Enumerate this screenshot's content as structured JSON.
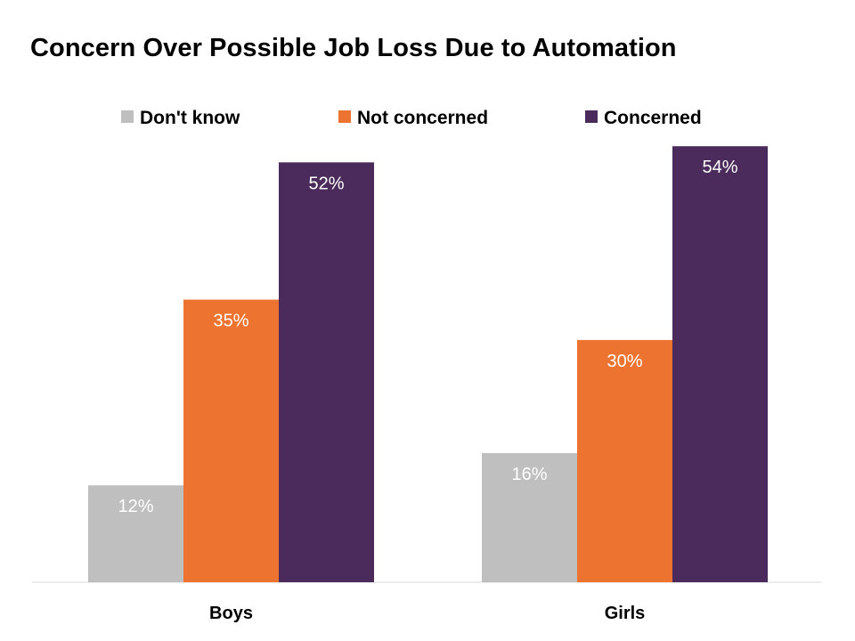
{
  "chart_data": {
    "type": "bar",
    "title": "Concern Over Possible Job Loss Due to Automation",
    "categories": [
      "Boys",
      "Girls"
    ],
    "series": [
      {
        "name": "Don't know",
        "values": [
          12,
          16
        ],
        "labels": [
          "12%",
          "16%"
        ],
        "color": "#bfbfbf"
      },
      {
        "name": "Not concerned",
        "values": [
          35,
          30
        ],
        "labels": [
          "35%",
          "30%"
        ],
        "color": "#ed7430"
      },
      {
        "name": "Concerned",
        "values": [
          52,
          54
        ],
        "labels": [
          "52%",
          "54%"
        ],
        "color": "#4b2b5c"
      }
    ],
    "xlabel": "",
    "ylabel": "",
    "ylim": [
      0,
      60
    ],
    "grid": false,
    "legend": "top"
  }
}
